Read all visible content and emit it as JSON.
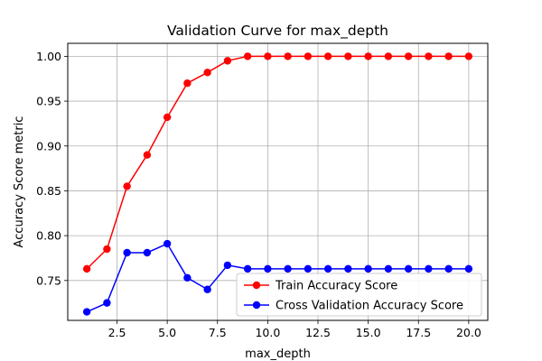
{
  "chart_data": {
    "type": "line",
    "title": "Validation Curve for max_depth",
    "xlabel": "max_depth",
    "ylabel": "Accuracy Score metric",
    "x": [
      1,
      2,
      3,
      4,
      5,
      6,
      7,
      8,
      9,
      10,
      11,
      12,
      13,
      14,
      15,
      16,
      17,
      18,
      19,
      20
    ],
    "xlim": [
      0.05,
      20.95
    ],
    "ylim": [
      0.7055,
      1.0145
    ],
    "xticks": [
      2.5,
      5.0,
      7.5,
      10.0,
      12.5,
      15.0,
      17.5,
      20.0
    ],
    "xtick_labels": [
      "2.5",
      "5.0",
      "7.5",
      "10.0",
      "12.5",
      "15.0",
      "17.5",
      "20.0"
    ],
    "yticks": [
      0.75,
      0.8,
      0.85,
      0.9,
      0.95,
      1.0
    ],
    "ytick_labels": [
      "0.75",
      "0.80",
      "0.85",
      "0.90",
      "0.95",
      "1.00"
    ],
    "grid": true,
    "legend_position": "lower-right",
    "series": [
      {
        "name": "Train Accuracy Score",
        "color": "#ff0000",
        "marker": "circle",
        "values": [
          0.763,
          0.785,
          0.855,
          0.89,
          0.932,
          0.97,
          0.982,
          0.995,
          1.0,
          1.0,
          1.0,
          1.0,
          1.0,
          1.0,
          1.0,
          1.0,
          1.0,
          1.0,
          1.0,
          1.0
        ]
      },
      {
        "name": "Cross Validation Accuracy Score",
        "color": "#0000ff",
        "marker": "circle",
        "values": [
          0.715,
          0.725,
          0.781,
          0.781,
          0.791,
          0.753,
          0.74,
          0.767,
          0.763,
          0.763,
          0.763,
          0.763,
          0.763,
          0.763,
          0.763,
          0.763,
          0.763,
          0.763,
          0.763,
          0.763
        ]
      }
    ]
  }
}
